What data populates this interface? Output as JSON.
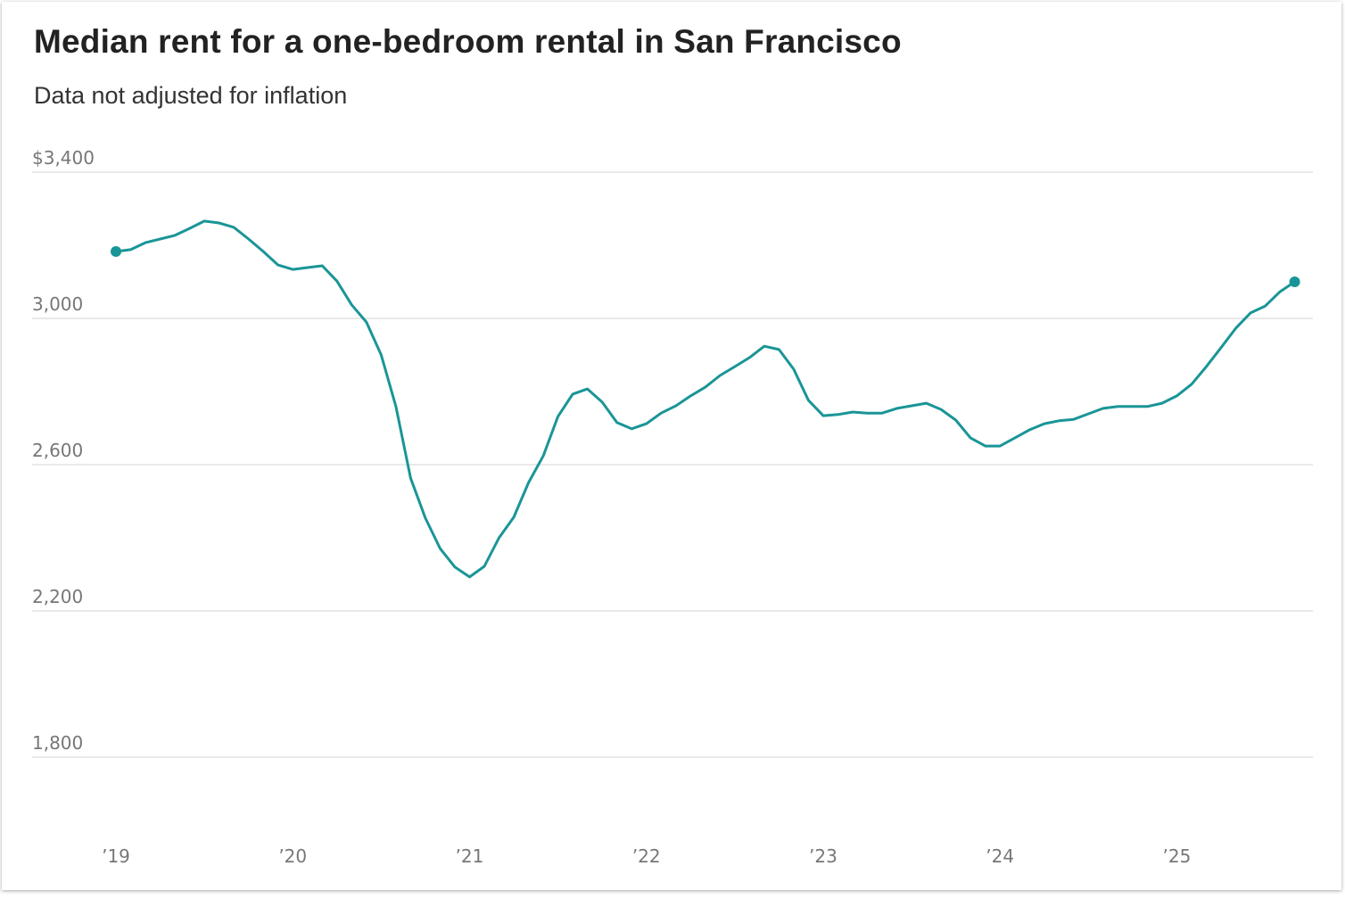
{
  "chart_data": {
    "type": "line",
    "title": "Median rent for a one-bedroom rental in San Francisco",
    "subtitle": "Data not adjusted for inflation",
    "xlabel": "",
    "ylabel": "",
    "ylim": [
      1800,
      3400
    ],
    "yticks": [
      3400,
      3000,
      2600,
      2200,
      1800
    ],
    "ytick_labels": [
      "$3,400",
      "3,000",
      "2,600",
      "2,200",
      "1,800"
    ],
    "xtick_labels": [
      "’19",
      "’20",
      "’21",
      "’22",
      "’23",
      "’24",
      "’25"
    ],
    "x_start": "2019-01",
    "x_interval": "monthly",
    "grid": true,
    "color": "#1a9597",
    "series": [
      {
        "name": "Median rent",
        "values": [
          3183,
          3188,
          3207,
          3217,
          3227,
          3246,
          3266,
          3261,
          3249,
          3217,
          3183,
          3146,
          3134,
          3139,
          3144,
          3102,
          3037,
          2990,
          2900,
          2759,
          2563,
          2454,
          2371,
          2320,
          2293,
          2322,
          2400,
          2456,
          2551,
          2624,
          2732,
          2793,
          2807,
          2771,
          2715,
          2698,
          2712,
          2741,
          2761,
          2788,
          2812,
          2844,
          2868,
          2893,
          2924,
          2915,
          2861,
          2776,
          2734,
          2737,
          2744,
          2741,
          2741,
          2754,
          2761,
          2768,
          2751,
          2722,
          2673,
          2651,
          2651,
          2673,
          2695,
          2712,
          2720,
          2724,
          2739,
          2754,
          2759,
          2759,
          2759,
          2768,
          2788,
          2820,
          2868,
          2920,
          2973,
          3015,
          3034,
          3073,
          3100
        ]
      }
    ]
  }
}
